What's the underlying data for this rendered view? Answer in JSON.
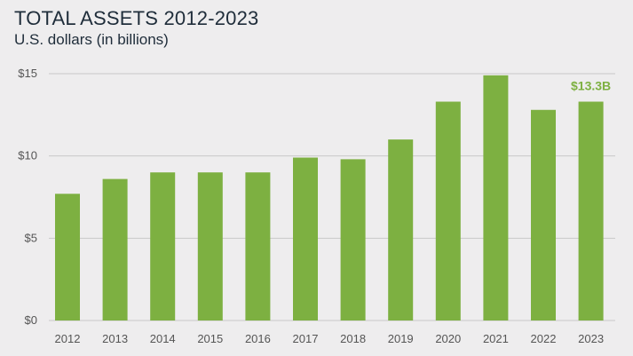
{
  "chart_data": {
    "type": "bar",
    "title": "TOTAL ASSETS 2012-2023",
    "subtitle": "U.S. dollars (in billions)",
    "categories": [
      "2012",
      "2013",
      "2014",
      "2015",
      "2016",
      "2017",
      "2018",
      "2019",
      "2020",
      "2021",
      "2022",
      "2023"
    ],
    "values": [
      7.7,
      8.6,
      9.0,
      9.0,
      9.0,
      9.9,
      9.8,
      11.0,
      13.3,
      14.9,
      12.8,
      13.3
    ],
    "ylim": [
      0,
      15
    ],
    "y_ticks": [
      0,
      5,
      10,
      15
    ],
    "y_tick_labels": [
      "$0",
      "$5",
      "$10",
      "$15"
    ],
    "grid": true,
    "bar_color": "#7db041",
    "grid_color": "#c8c8c8",
    "annotation": {
      "category": "2023",
      "label": "$13.3B",
      "color": "#7db041"
    }
  }
}
